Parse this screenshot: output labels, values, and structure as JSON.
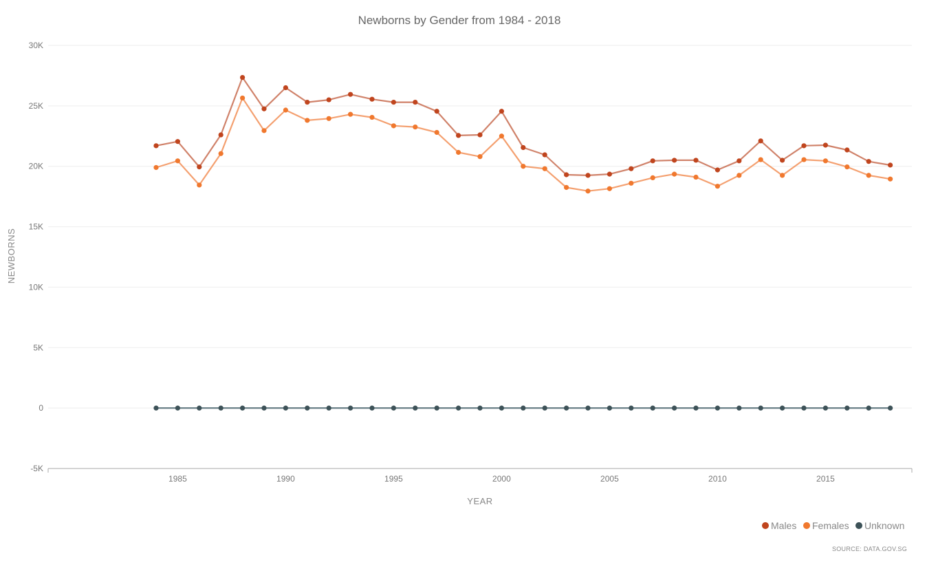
{
  "chart_data": {
    "type": "line",
    "title": "Newborns by Gender from 1984 - 2018",
    "xlabel": "YEAR",
    "ylabel": "NEWBORNS",
    "source": "SOURCE: DATA.GOV.SG",
    "xlim": [
      1979,
      2019
    ],
    "ylim": [
      -5000,
      30000
    ],
    "x_ticks": [
      1985,
      1990,
      1995,
      2000,
      2005,
      2010,
      2015
    ],
    "x_tick_labels": [
      "1985",
      "1990",
      "1995",
      "2000",
      "2005",
      "2010",
      "2015"
    ],
    "y_ticks": [
      -5000,
      0,
      5000,
      10000,
      15000,
      20000,
      25000,
      30000
    ],
    "y_tick_labels": [
      "-5K",
      "0",
      "5K",
      "10K",
      "15K",
      "20K",
      "25K",
      "30K"
    ],
    "grid": true,
    "legend_position": "bottom-right",
    "x": [
      1984,
      1985,
      1986,
      1987,
      1988,
      1989,
      1990,
      1991,
      1992,
      1993,
      1994,
      1995,
      1996,
      1997,
      1998,
      1999,
      2000,
      2001,
      2002,
      2003,
      2004,
      2005,
      2006,
      2007,
      2008,
      2009,
      2010,
      2011,
      2012,
      2013,
      2014,
      2015,
      2016,
      2017,
      2018
    ],
    "series": [
      {
        "name": "Males",
        "color": "#c0451e",
        "line_color": "#d0826a",
        "values": [
          21700,
          22050,
          19950,
          22600,
          27350,
          24750,
          26500,
          25300,
          25500,
          25950,
          25550,
          25300,
          25300,
          24550,
          22550,
          22600,
          24550,
          21550,
          20950,
          19300,
          19250,
          19350,
          19800,
          20450,
          20500,
          20500,
          19700,
          20450,
          22100,
          20500,
          21700,
          21750,
          21350,
          20400,
          20100
        ]
      },
      {
        "name": "Females",
        "color": "#f0782e",
        "line_color": "#f4a070",
        "values": [
          19900,
          20450,
          18450,
          21050,
          25650,
          22950,
          24650,
          23800,
          23950,
          24300,
          24050,
          23350,
          23250,
          22800,
          21150,
          20800,
          22500,
          20000,
          19800,
          18250,
          17950,
          18150,
          18600,
          19050,
          19350,
          19100,
          18350,
          19250,
          20550,
          19250,
          20550,
          20450,
          19950,
          19250,
          18950
        ]
      },
      {
        "name": "Unknown",
        "color": "#3d5258",
        "line_color": "#6a8088",
        "values": [
          0,
          0,
          0,
          0,
          0,
          0,
          0,
          0,
          0,
          0,
          0,
          0,
          0,
          0,
          0,
          0,
          0,
          0,
          0,
          0,
          0,
          0,
          0,
          0,
          0,
          0,
          0,
          0,
          0,
          0,
          0,
          0,
          0,
          0,
          0
        ]
      }
    ]
  }
}
